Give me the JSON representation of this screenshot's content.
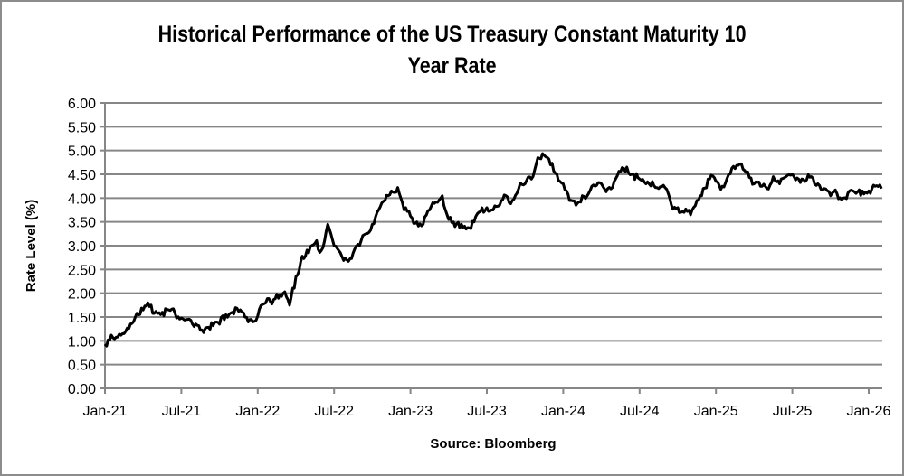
{
  "chart_data": {
    "type": "line",
    "title_line1": "Historical Performance of the US Treasury Constant Maturity 10",
    "title_line2": "Year Rate",
    "xlabel": "Source: Bloomberg",
    "ylabel": "Rate Level (%)",
    "ylim": [
      0,
      6
    ],
    "y_ticks": [
      "0.00",
      "0.50",
      "1.00",
      "1.50",
      "2.00",
      "2.50",
      "3.00",
      "3.50",
      "4.00",
      "4.50",
      "5.00",
      "5.50",
      "6.00"
    ],
    "x_ticks": [
      "Jan-21",
      "Jul-21",
      "Jan-22",
      "Jul-22",
      "Jan-23",
      "Jul-23",
      "Jan-24",
      "Jul-24",
      "Jan-25",
      "Jul-25",
      "Jan-26"
    ],
    "x_range_months": [
      0,
      61
    ],
    "grid": true,
    "line_color": "#000000",
    "grid_color": "#868686",
    "series": [
      {
        "name": "US Treasury 10Y",
        "x_months": [
          0,
          0.5,
          1,
          1.5,
          2,
          2.5,
          3,
          3.5,
          4,
          4.5,
          5,
          5.5,
          6,
          6.5,
          7,
          7.5,
          8,
          8.5,
          9,
          9.5,
          10,
          10.5,
          11,
          11.5,
          12,
          12.5,
          13,
          13.5,
          14,
          14.5,
          15,
          15.5,
          16,
          16.5,
          17,
          17.5,
          18,
          18.5,
          19,
          19.5,
          20,
          20.5,
          21,
          21.5,
          22,
          22.5,
          23,
          23.5,
          24,
          24.5,
          25,
          25.5,
          26,
          26.5,
          27,
          27.5,
          28,
          28.5,
          29,
          29.5,
          30,
          30.5,
          31,
          31.5,
          32,
          32.5,
          33,
          33.5,
          34,
          34.5,
          35,
          35.5,
          36,
          36.5,
          37,
          37.5,
          38,
          38.5,
          39,
          39.5,
          40,
          40.5,
          41,
          41.5,
          42,
          42.5,
          43,
          43.5,
          44,
          44.5,
          45,
          45.5,
          46,
          46.5,
          47,
          47.5,
          48,
          48.5,
          49,
          49.5,
          50,
          50.5,
          51,
          51.5,
          52,
          52.5,
          53,
          53.5,
          54,
          54.5,
          55,
          55.5,
          56,
          56.5,
          57,
          57.5,
          58,
          58.5,
          59,
          59.5,
          60,
          60.5,
          61
        ],
        "values": [
          0.93,
          1.12,
          1.08,
          1.15,
          1.35,
          1.58,
          1.65,
          1.72,
          1.62,
          1.6,
          1.65,
          1.58,
          1.48,
          1.45,
          1.3,
          1.22,
          1.28,
          1.32,
          1.35,
          1.55,
          1.6,
          1.62,
          1.5,
          1.45,
          1.52,
          1.78,
          1.82,
          1.98,
          2.0,
          1.75,
          2.35,
          2.78,
          2.85,
          3.05,
          2.9,
          3.45,
          3.0,
          2.85,
          2.7,
          2.85,
          3.0,
          3.25,
          3.45,
          3.75,
          3.95,
          4.15,
          4.22,
          3.75,
          3.62,
          3.5,
          3.45,
          3.75,
          3.92,
          4.05,
          3.55,
          3.4,
          3.45,
          3.38,
          3.5,
          3.72,
          3.8,
          3.75,
          3.85,
          4.05,
          3.95,
          4.2,
          4.3,
          4.4,
          4.85,
          4.9,
          4.7,
          4.5,
          4.3,
          3.95,
          3.85,
          4.05,
          4.1,
          4.25,
          4.3,
          4.2,
          4.35,
          4.55,
          4.65,
          4.5,
          4.4,
          4.3,
          4.35,
          4.2,
          4.22,
          3.85,
          3.8,
          3.7,
          3.65,
          3.95,
          4.2,
          4.4,
          4.35,
          4.25,
          4.5,
          4.62,
          4.72,
          4.55,
          4.3,
          4.25,
          4.2,
          4.45,
          4.3,
          4.45,
          4.5,
          4.4,
          4.35,
          4.45,
          4.3,
          4.2,
          4.05,
          4.1,
          4.0,
          4.15,
          4.1,
          4.15,
          4.15,
          4.25,
          4.2
        ]
      }
    ]
  }
}
